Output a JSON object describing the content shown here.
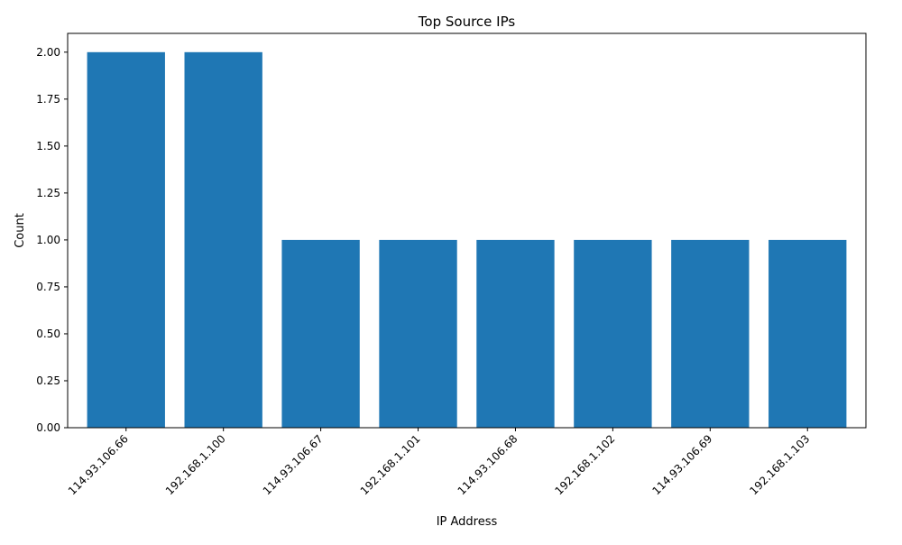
{
  "chart_data": {
    "type": "bar",
    "title": "Top Source IPs",
    "xlabel": "IP Address",
    "ylabel": "Count",
    "categories": [
      "114.93.106.66",
      "192.168.1.100",
      "114.93.106.67",
      "192.168.1.101",
      "114.93.106.68",
      "192.168.1.102",
      "114.93.106.69",
      "192.168.1.103"
    ],
    "values": [
      2,
      2,
      1,
      1,
      1,
      1,
      1,
      1
    ],
    "ylim": [
      0,
      2.1
    ],
    "yticks": [
      "0.00",
      "0.25",
      "0.50",
      "0.75",
      "1.00",
      "1.25",
      "1.50",
      "1.75",
      "2.00"
    ],
    "bar_color": "#1f77b4",
    "grid": false,
    "legend": "none"
  }
}
